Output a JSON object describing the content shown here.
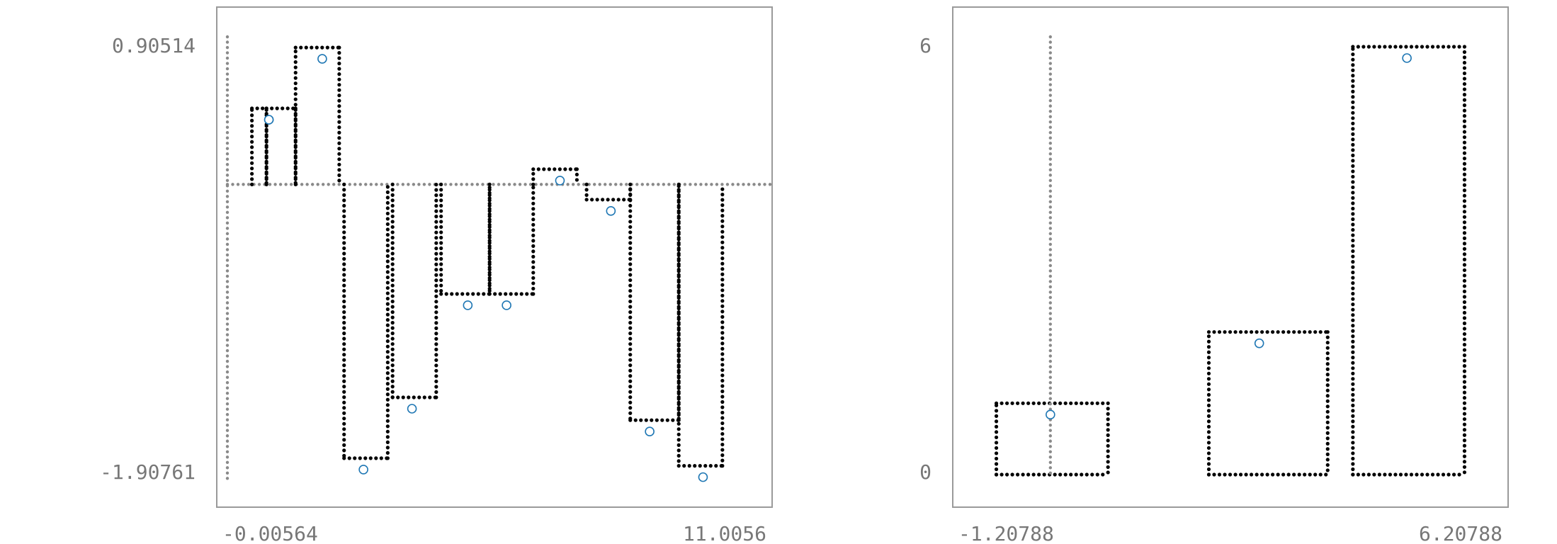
{
  "chart_data": [
    {
      "type": "bar",
      "title": "",
      "xlabel": "",
      "ylabel": "",
      "x_tick_labels": [
        "-0.00564",
        "11.0056"
      ],
      "y_tick_labels": [
        "0.90514",
        "-1.90761"
      ],
      "xlim": [
        -0.00564,
        11.0056
      ],
      "ylim": [
        -1.90761,
        0.90514
      ],
      "grid": false,
      "bars": [
        {
          "x0": 0.5,
          "x1": 0.8,
          "value": 0.5,
          "point_x": 0.85
        },
        {
          "x0": 0.8,
          "x1": 1.4,
          "value": 0.5,
          "point_x": 0.85
        },
        {
          "x0": 1.4,
          "x1": 2.3,
          "value": 0.9,
          "point_x": 1.95
        },
        {
          "x0": 2.4,
          "x1": 3.3,
          "value": -1.8,
          "point_x": 2.8
        },
        {
          "x0": 3.4,
          "x1": 4.3,
          "value": -1.4,
          "point_x": 3.8
        },
        {
          "x0": 4.4,
          "x1": 5.4,
          "value": -0.72,
          "point_x": 4.95
        },
        {
          "x0": 5.4,
          "x1": 6.3,
          "value": -0.72,
          "point_x": 5.75
        },
        {
          "x0": 6.3,
          "x1": 7.2,
          "value": 0.1,
          "point_x": 6.85
        },
        {
          "x0": 7.4,
          "x1": 8.3,
          "value": -0.1,
          "point_x": 7.9
        },
        {
          "x0": 8.3,
          "x1": 9.3,
          "value": -1.55,
          "point_x": 8.7
        },
        {
          "x0": 9.3,
          "x1": 10.2,
          "value": -1.85,
          "point_x": 9.8
        }
      ]
    },
    {
      "type": "bar",
      "title": "",
      "xlabel": "",
      "ylabel": "",
      "x_tick_labels": [
        "-1.20788",
        "6.20788"
      ],
      "y_tick_labels": [
        "6",
        "0"
      ],
      "xlim": [
        -1.20788,
        6.20788
      ],
      "ylim": [
        0,
        6
      ],
      "grid": false,
      "bars": [
        {
          "x0": -0.75,
          "x1": 0.8,
          "value": 1,
          "point_x": 0.0
        },
        {
          "x0": 2.2,
          "x1": 3.85,
          "value": 2,
          "point_x": 2.9
        },
        {
          "x0": 4.2,
          "x1": 5.75,
          "value": 6,
          "point_x": 4.95
        }
      ]
    }
  ]
}
